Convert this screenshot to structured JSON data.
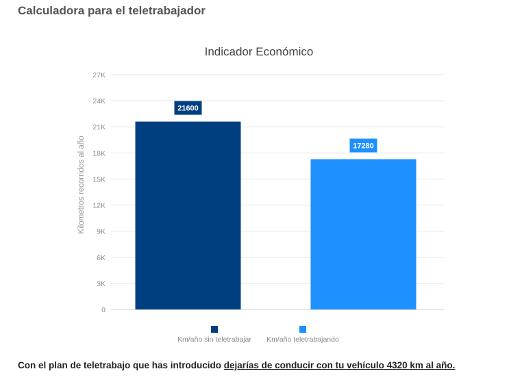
{
  "page": {
    "title": "Calculadora para el teletrabajador"
  },
  "chart_data": {
    "type": "bar",
    "title": "Indicador Económico",
    "xlabel": "",
    "ylabel": "Kilometros recorridos al año",
    "ylim": [
      0,
      27000
    ],
    "yticks": [
      0,
      3000,
      6000,
      9000,
      12000,
      15000,
      18000,
      21000,
      24000,
      27000
    ],
    "ytick_labels": [
      "0",
      "3K",
      "6K",
      "9K",
      "12K",
      "15K",
      "18K",
      "21K",
      "24K",
      "27K"
    ],
    "grid": true,
    "legend_position": "bottom",
    "categories": [
      "Km/año sin teletrabajar",
      "Km/año teletrabajando"
    ],
    "values": [
      21600,
      17280
    ],
    "data_labels": [
      "21600",
      "17280"
    ],
    "colors": [
      "#003f7f",
      "#1e90ff"
    ]
  },
  "footer": {
    "text_prefix": "Con el plan de teletrabajo que has introducido ",
    "text_emphasis": "dejarías de conducir con tu vehículo 4320 km al año."
  }
}
